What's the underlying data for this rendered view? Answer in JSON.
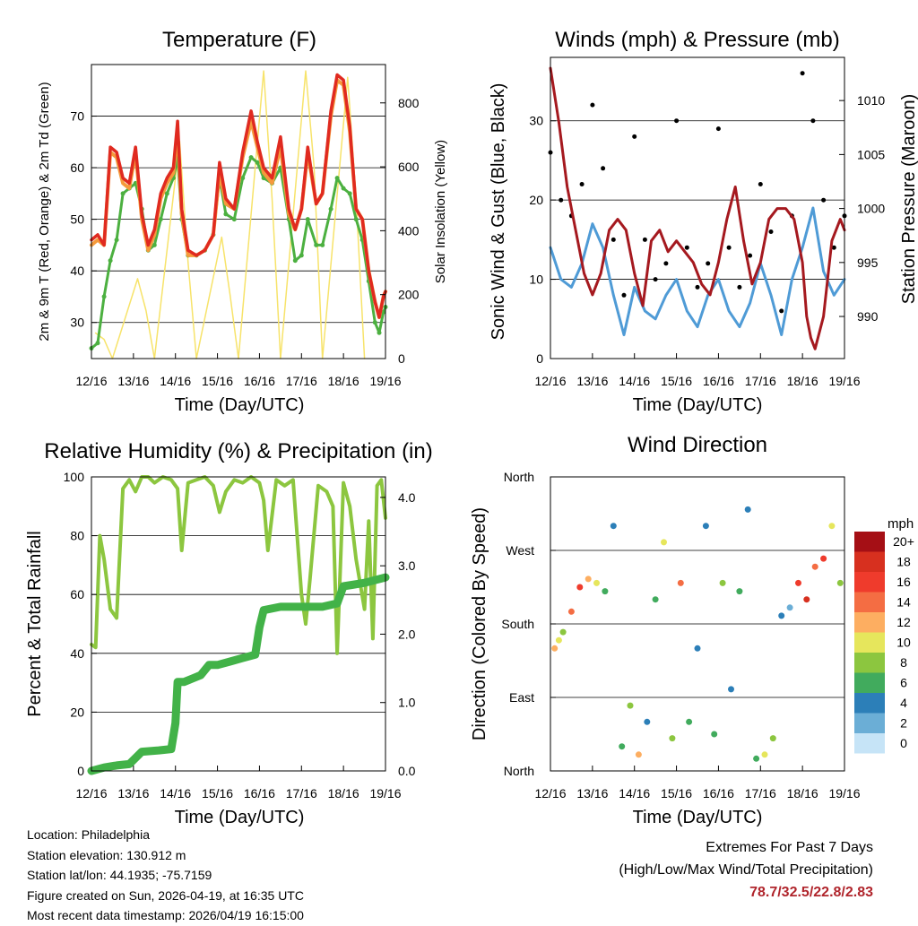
{
  "colors": {
    "temp2m": "#e02a20",
    "temp9m": "#f59a3c",
    "dewpoint": "#4cb040",
    "solar": "#f7e36a",
    "wind": "#4f9bd6",
    "gust": "#000000",
    "pressure": "#a5191f",
    "rh": "#8cc63f",
    "precip": "#42b248"
  },
  "x_ticks": [
    "12/16",
    "13/16",
    "14/16",
    "15/16",
    "16/16",
    "17/16",
    "18/16",
    "19/16"
  ],
  "panels": {
    "temperature": {
      "title": "Temperature (F)",
      "xlabel": "Time (Day/UTC)",
      "ylabel_left": "2m & 9m T (Red, Orange) & 2m Td (Green)",
      "ylabel_right": "Solar Insolation (Yellow)",
      "left_ticks": [
        "30",
        "40",
        "50",
        "60",
        "70"
      ],
      "right_ticks": [
        "0",
        "200",
        "400",
        "600",
        "800"
      ]
    },
    "wind": {
      "title": "Winds (mph) & Pressure (mb)",
      "xlabel": "Time (Day/UTC)",
      "ylabel_left": "Sonic Wind & Gust (Blue, Black)",
      "ylabel_right": "Station Pressure (Maroon)",
      "left_ticks": [
        "0",
        "10",
        "20",
        "30"
      ],
      "right_ticks": [
        "990",
        "995",
        "1000",
        "1005",
        "1010"
      ]
    },
    "humidity": {
      "title": "Relative Humidity (%) & Precipitation (in)",
      "xlabel": "Time (Day/UTC)",
      "ylabel_left": "Percent & Total Rainfall",
      "left_ticks": [
        "0",
        "20",
        "40",
        "60",
        "80",
        "100"
      ],
      "right_ticks": [
        "0.0",
        "1.0",
        "2.0",
        "3.0",
        "4.0"
      ]
    },
    "direction": {
      "title": "Wind Direction",
      "xlabel": "Time (Day/UTC)",
      "ylabel_left": "Direction (Colored By Speed)",
      "left_ticks": [
        "North",
        "East",
        "South",
        "West",
        "North"
      ],
      "legend_unit": "mph",
      "legend_labels": [
        "20+",
        "18",
        "16",
        "14",
        "12",
        "10",
        "8",
        "6",
        "4",
        "2",
        "0"
      ],
      "legend_colors": [
        "#a50f15",
        "#d7301f",
        "#ef3b2c",
        "#f46d43",
        "#fdae61",
        "#e6e65c",
        "#8cc63f",
        "#41ab5d",
        "#2c7fb8",
        "#6baed6",
        "#c6e4f7"
      ]
    }
  },
  "chart_data": [
    {
      "type": "line",
      "title": "Temperature (F)",
      "xlabel": "Time (Day/UTC)",
      "ylabel": "2m & 9m T (Red, Orange) & 2m Td (Green)",
      "y2label": "Solar Insolation (Yellow)",
      "xlim": [
        0,
        7
      ],
      "ylim": [
        23,
        80
      ],
      "y2lim": [
        0,
        920
      ],
      "series": [
        {
          "name": "2m T",
          "x": [
            0,
            0.15,
            0.3,
            0.45,
            0.6,
            0.75,
            0.9,
            1.05,
            1.2,
            1.35,
            1.5,
            1.65,
            1.8,
            1.95,
            2.05,
            2.15,
            2.3,
            2.5,
            2.7,
            2.9,
            3.05,
            3.2,
            3.4,
            3.6,
            3.8,
            3.95,
            4.1,
            4.3,
            4.5,
            4.7,
            4.85,
            5.0,
            5.15,
            5.35,
            5.5,
            5.7,
            5.85,
            6.0,
            6.15,
            6.3,
            6.45,
            6.6,
            6.75,
            6.85,
            6.95,
            7.0
          ],
          "values": [
            46,
            47,
            45,
            64,
            63,
            58,
            57,
            64,
            51,
            45,
            48,
            55,
            58,
            60,
            69,
            52,
            44,
            43,
            44,
            47,
            61,
            54,
            52,
            63,
            71,
            65,
            60,
            58,
            66,
            52,
            48,
            52,
            64,
            53,
            55,
            71,
            78,
            77,
            68,
            52,
            50,
            40,
            34,
            31,
            35,
            36
          ]
        },
        {
          "name": "9m T",
          "x": [
            0,
            0.15,
            0.3,
            0.45,
            0.6,
            0.75,
            0.9,
            1.05,
            1.2,
            1.35,
            1.5,
            1.65,
            1.8,
            1.95,
            2.05,
            2.15,
            2.3,
            2.5,
            2.7,
            2.9,
            3.05,
            3.2,
            3.4,
            3.6,
            3.8,
            3.95,
            4.1,
            4.3,
            4.5,
            4.7,
            4.85,
            5.0,
            5.15,
            5.35,
            5.5,
            5.7,
            5.85,
            6.0,
            6.15,
            6.3,
            6.45,
            6.6,
            6.75,
            6.85,
            6.95,
            7.0
          ],
          "values": [
            45,
            46,
            45,
            63,
            62,
            57,
            56,
            63,
            50,
            44,
            47,
            54,
            57,
            59,
            67,
            51,
            43,
            43,
            44,
            47,
            59,
            53,
            52,
            62,
            69,
            64,
            59,
            57,
            64,
            51,
            48,
            52,
            63,
            53,
            55,
            70,
            77,
            76,
            67,
            52,
            50,
            40,
            34,
            31,
            35,
            36
          ]
        },
        {
          "name": "2m Td",
          "x": [
            0,
            0.15,
            0.3,
            0.45,
            0.6,
            0.75,
            0.9,
            1.05,
            1.2,
            1.35,
            1.5,
            1.65,
            1.8,
            1.95,
            2.05,
            2.15,
            2.3,
            2.5,
            2.7,
            2.9,
            3.05,
            3.2,
            3.4,
            3.6,
            3.8,
            3.95,
            4.1,
            4.3,
            4.5,
            4.7,
            4.85,
            5.0,
            5.15,
            5.35,
            5.5,
            5.7,
            5.85,
            6.0,
            6.15,
            6.3,
            6.45,
            6.6,
            6.75,
            6.85,
            6.95,
            7.0
          ],
          "values": [
            25,
            26,
            35,
            42,
            46,
            55,
            56,
            57,
            52,
            44,
            45,
            50,
            55,
            58,
            62,
            50,
            43,
            43,
            44,
            47,
            58,
            51,
            50,
            58,
            62,
            61,
            58,
            57,
            60,
            50,
            42,
            43,
            50,
            45,
            45,
            52,
            58,
            56,
            55,
            50,
            46,
            38,
            30,
            28,
            32,
            33
          ]
        },
        {
          "name": "Solar Insolation",
          "axis": "right",
          "x": [
            0.1,
            0.3,
            0.5,
            1.1,
            1.3,
            1.5,
            2.1,
            2.3,
            2.5,
            3.1,
            3.3,
            3.5,
            4.1,
            4.3,
            4.5,
            5.1,
            5.3,
            5.5,
            6.1,
            6.3,
            6.5
          ],
          "values": [
            80,
            60,
            0,
            250,
            150,
            0,
            680,
            300,
            0,
            380,
            200,
            0,
            900,
            500,
            0,
            900,
            600,
            0,
            880,
            500,
            0
          ]
        }
      ]
    },
    {
      "type": "line",
      "title": "Winds (mph) & Pressure (mb)",
      "xlabel": "Time (Day/UTC)",
      "ylabel": "Sonic Wind & Gust (Blue, Black)",
      "y2label": "Station Pressure (Maroon)",
      "xlim": [
        0,
        7
      ],
      "ylim": [
        0,
        38
      ],
      "y2lim": [
        986.1,
        1014.0
      ],
      "series": [
        {
          "name": "Sonic Wind",
          "x": [
            0,
            0.25,
            0.5,
            0.75,
            1.0,
            1.25,
            1.5,
            1.75,
            2.0,
            2.25,
            2.5,
            2.75,
            3.0,
            3.25,
            3.5,
            3.75,
            4.0,
            4.25,
            4.5,
            4.75,
            5.0,
            5.25,
            5.5,
            5.75,
            6.0,
            6.25,
            6.5,
            6.75,
            7.0
          ],
          "values": [
            14,
            10,
            9,
            12,
            17,
            14,
            8,
            3,
            9,
            6,
            5,
            8,
            10,
            6,
            4,
            8,
            10,
            6,
            4,
            7,
            12,
            8,
            3,
            10,
            14,
            19,
            11,
            8,
            10
          ]
        },
        {
          "name": "Gust",
          "x": [
            0,
            0.25,
            0.5,
            0.75,
            1.0,
            1.25,
            1.5,
            1.75,
            2.0,
            2.25,
            2.5,
            2.75,
            3.0,
            3.25,
            3.5,
            3.75,
            4.0,
            4.25,
            4.5,
            4.75,
            5.0,
            5.25,
            5.5,
            5.75,
            6.0,
            6.25,
            6.5,
            6.75,
            7.0
          ],
          "values": [
            26,
            20,
            18,
            22,
            32,
            24,
            15,
            8,
            28,
            15,
            10,
            12,
            30,
            14,
            9,
            12,
            29,
            14,
            9,
            13,
            22,
            16,
            6,
            18,
            36,
            30,
            20,
            14,
            18
          ]
        },
        {
          "name": "Station Pressure",
          "axis": "right",
          "x": [
            0,
            0.2,
            0.4,
            0.6,
            0.8,
            1.0,
            1.2,
            1.4,
            1.6,
            1.8,
            2.0,
            2.2,
            2.4,
            2.6,
            2.8,
            3.0,
            3.2,
            3.4,
            3.6,
            3.8,
            4.0,
            4.2,
            4.4,
            4.6,
            4.8,
            5.0,
            5.2,
            5.4,
            5.6,
            5.8,
            6.0,
            6.1,
            6.2,
            6.3,
            6.5,
            6.7,
            6.9,
            7.0
          ],
          "values": [
            1013,
            1008,
            1002,
            998,
            994,
            992,
            994,
            998,
            999,
            998,
            994,
            991,
            997,
            998,
            996,
            997,
            996,
            995,
            993,
            992,
            995,
            999,
            1002,
            997,
            993,
            995,
            999,
            1000,
            1000,
            999,
            995,
            990,
            988,
            987,
            990,
            997,
            999,
            998
          ]
        }
      ]
    },
    {
      "type": "line",
      "title": "Relative Humidity (%) & Precipitation (in)",
      "xlabel": "Time (Day/UTC)",
      "ylabel": "Percent & Total Rainfall",
      "xlim": [
        0,
        7
      ],
      "ylim": [
        0,
        100
      ],
      "y2lim": [
        0.0,
        4.3
      ],
      "series": [
        {
          "name": "Relative Humidity",
          "x": [
            0,
            0.1,
            0.2,
            0.3,
            0.45,
            0.6,
            0.75,
            0.9,
            1.05,
            1.2,
            1.35,
            1.5,
            1.7,
            1.9,
            2.05,
            2.15,
            2.3,
            2.5,
            2.7,
            2.9,
            3.05,
            3.2,
            3.4,
            3.6,
            3.8,
            4.0,
            4.1,
            4.2,
            4.4,
            4.6,
            4.8,
            5.0,
            5.1,
            5.2,
            5.4,
            5.6,
            5.75,
            5.85,
            6.0,
            6.15,
            6.3,
            6.5,
            6.6,
            6.7,
            6.8,
            6.9,
            7.0
          ],
          "values": [
            43,
            42,
            80,
            72,
            55,
            52,
            96,
            99,
            95,
            100,
            100,
            98,
            100,
            99,
            96,
            75,
            98,
            99,
            100,
            97,
            88,
            95,
            99,
            98,
            100,
            98,
            92,
            75,
            99,
            97,
            99,
            60,
            50,
            65,
            97,
            95,
            90,
            40,
            98,
            90,
            72,
            55,
            85,
            45,
            97,
            99,
            86
          ]
        },
        {
          "name": "Total Precipitation",
          "axis": "right",
          "x": [
            0,
            0.3,
            0.6,
            0.9,
            1.2,
            1.6,
            1.9,
            2.0,
            2.05,
            2.2,
            2.4,
            2.6,
            2.8,
            3.0,
            3.3,
            3.6,
            3.9,
            4.0,
            4.1,
            4.5,
            5.0,
            5.5,
            5.85,
            6.0,
            6.2,
            6.5,
            7.0
          ],
          "values": [
            0.0,
            0.05,
            0.08,
            0.1,
            0.28,
            0.3,
            0.32,
            0.7,
            1.3,
            1.3,
            1.35,
            1.4,
            1.55,
            1.55,
            1.6,
            1.65,
            1.7,
            2.1,
            2.35,
            2.4,
            2.4,
            2.4,
            2.45,
            2.7,
            2.72,
            2.75,
            2.83
          ]
        }
      ]
    },
    {
      "type": "scatter",
      "title": "Wind Direction",
      "xlabel": "Time (Day/UTC)",
      "ylabel": "Direction (Colored By Speed)",
      "xlim": [
        0,
        7
      ],
      "ylim": [
        0,
        360
      ],
      "yticks": [
        "North",
        "East",
        "South",
        "West",
        "North"
      ],
      "colorbar": {
        "unit": "mph",
        "levels": [
          "0",
          "2",
          "4",
          "6",
          "8",
          "10",
          "12",
          "14",
          "16",
          "18",
          "20+"
        ]
      },
      "x": [
        0.1,
        0.2,
        0.3,
        0.5,
        0.7,
        0.9,
        1.1,
        1.3,
        1.5,
        1.7,
        1.9,
        2.1,
        2.3,
        2.5,
        2.7,
        2.9,
        3.1,
        3.3,
        3.5,
        3.7,
        3.9,
        4.1,
        4.3,
        4.5,
        4.7,
        4.9,
        5.1,
        5.3,
        5.5,
        5.7,
        5.9,
        6.1,
        6.3,
        6.5,
        6.7,
        6.9
      ],
      "values": [
        150,
        160,
        170,
        195,
        225,
        235,
        230,
        220,
        300,
        30,
        80,
        20,
        60,
        210,
        280,
        40,
        230,
        60,
        150,
        300,
        45,
        230,
        100,
        220,
        320,
        15,
        20,
        40,
        190,
        200,
        230,
        210,
        250,
        260,
        300,
        230
      ],
      "speeds": [
        12,
        10,
        8,
        14,
        16,
        12,
        10,
        6,
        4,
        6,
        8,
        12,
        4,
        6,
        10,
        8,
        14,
        6,
        4,
        4,
        6,
        8,
        4,
        6,
        4,
        6,
        10,
        8,
        4,
        2,
        16,
        18,
        14,
        16,
        10,
        8
      ]
    }
  ],
  "footer": {
    "location": "Location: Philadelphia",
    "elevation": "Station elevation: 130.912 m",
    "latlon": "Station lat/lon: 44.1935; -75.7159",
    "created": "Figure created on Sun, 2026-04-19, at 16:35 UTC",
    "recent": "Most recent data timestamp: 2026/04/19 16:15:00"
  },
  "extremes": {
    "title": "Extremes For Past 7 Days",
    "subtitle": "(High/Low/Max Wind/Total Precipitation)",
    "values": "78.7/32.5/22.8/2.83"
  }
}
